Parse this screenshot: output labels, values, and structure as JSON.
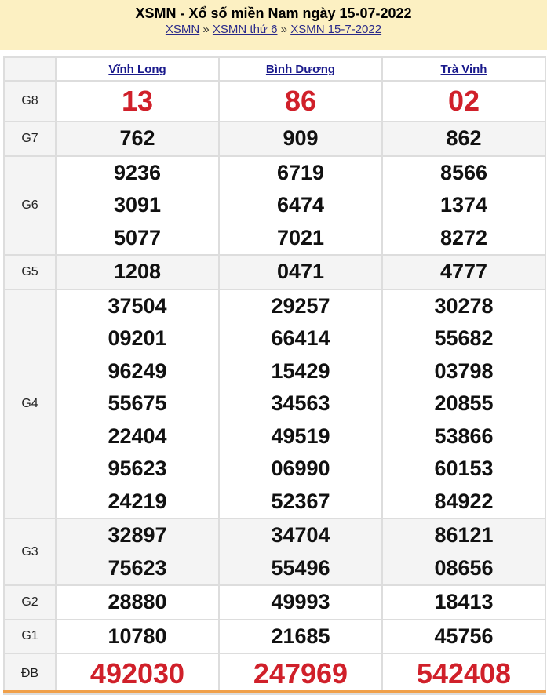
{
  "header": {
    "title": "XSMN - Xổ số miền Nam ngày 15-07-2022",
    "breadcrumbs": [
      "XSMN",
      "XSMN thứ 6",
      "XSMN 15-7-2022"
    ],
    "separator": "»"
  },
  "provinces": [
    "Vĩnh Long",
    "Bình Dương",
    "Trà Vinh"
  ],
  "prizes": [
    {
      "label": "G8",
      "values": [
        [
          "13"
        ],
        [
          "86"
        ],
        [
          "02"
        ]
      ]
    },
    {
      "label": "G7",
      "values": [
        [
          "762"
        ],
        [
          "909"
        ],
        [
          "862"
        ]
      ]
    },
    {
      "label": "G6",
      "values": [
        [
          "9236",
          "3091",
          "5077"
        ],
        [
          "6719",
          "6474",
          "7021"
        ],
        [
          "8566",
          "1374",
          "8272"
        ]
      ]
    },
    {
      "label": "G5",
      "values": [
        [
          "1208"
        ],
        [
          "0471"
        ],
        [
          "4777"
        ]
      ]
    },
    {
      "label": "G4",
      "values": [
        [
          "37504",
          "09201",
          "96249",
          "55675",
          "22404",
          "95623",
          "24219"
        ],
        [
          "29257",
          "66414",
          "15429",
          "34563",
          "49519",
          "06990",
          "52367"
        ],
        [
          "30278",
          "55682",
          "03798",
          "20855",
          "53866",
          "60153",
          "84922"
        ]
      ]
    },
    {
      "label": "G3",
      "values": [
        [
          "32897",
          "75623"
        ],
        [
          "34704",
          "55496"
        ],
        [
          "86121",
          "08656"
        ]
      ]
    },
    {
      "label": "G2",
      "values": [
        [
          "28880"
        ],
        [
          "49993"
        ],
        [
          "18413"
        ]
      ]
    },
    {
      "label": "G1",
      "values": [
        [
          "10780"
        ],
        [
          "21685"
        ],
        [
          "45756"
        ]
      ]
    },
    {
      "label": "ĐB",
      "values": [
        [
          "492030"
        ],
        [
          "247969"
        ],
        [
          "542408"
        ]
      ]
    }
  ],
  "colors": {
    "highlight": "#d0202a",
    "header_bg": "#fcf0c2"
  }
}
